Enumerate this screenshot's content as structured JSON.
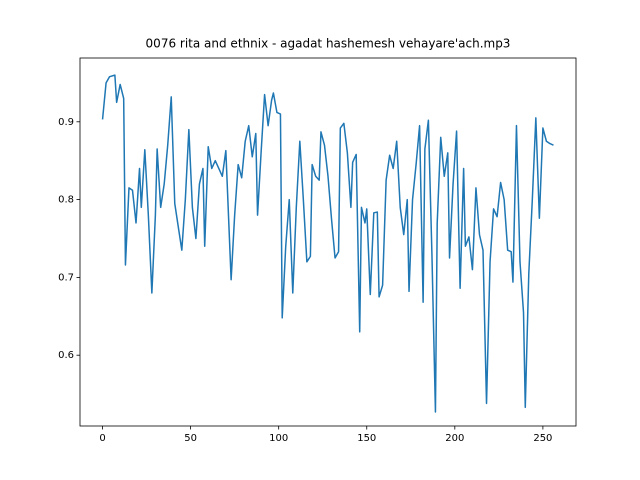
{
  "chart_data": {
    "type": "line",
    "title": "0076 rita and ethnix - agadat hashemesh vehayare'ach.mp3",
    "x": [
      0,
      2,
      4,
      7,
      8,
      10,
      12,
      13,
      15,
      17,
      19,
      21,
      22,
      24,
      26,
      28,
      30,
      31,
      33,
      35,
      37,
      39,
      41,
      43,
      45,
      47,
      49,
      51,
      53,
      55,
      57,
      58,
      60,
      62,
      64,
      66,
      68,
      70,
      73,
      75,
      77,
      79,
      81,
      83,
      85,
      87,
      88,
      90,
      92,
      94,
      96,
      97,
      99,
      101,
      102,
      104,
      106,
      108,
      110,
      112,
      114,
      116,
      118,
      119,
      121,
      123,
      124,
      126,
      128,
      130,
      132,
      134,
      135,
      137,
      139,
      141,
      142,
      144,
      146,
      147,
      149,
      150,
      152,
      154,
      156,
      157,
      159,
      161,
      163,
      165,
      167,
      169,
      171,
      173,
      174,
      176,
      178,
      180,
      182,
      183,
      185,
      187,
      189,
      190,
      192,
      194,
      196,
      197,
      199,
      201,
      203,
      205,
      206,
      208,
      210,
      212,
      214,
      216,
      218,
      220,
      222,
      224,
      226,
      228,
      230,
      232,
      233,
      235,
      237,
      239,
      240,
      242,
      244,
      246,
      248,
      250,
      252,
      254,
      256
    ],
    "values": [
      0.903,
      0.95,
      0.958,
      0.96,
      0.925,
      0.948,
      0.93,
      0.716,
      0.815,
      0.812,
      0.77,
      0.84,
      0.79,
      0.864,
      0.78,
      0.68,
      0.78,
      0.865,
      0.79,
      0.82,
      0.87,
      0.932,
      0.795,
      0.765,
      0.735,
      0.8,
      0.89,
      0.79,
      0.75,
      0.82,
      0.84,
      0.74,
      0.868,
      0.84,
      0.85,
      0.84,
      0.83,
      0.863,
      0.697,
      0.78,
      0.845,
      0.828,
      0.875,
      0.895,
      0.855,
      0.885,
      0.78,
      0.86,
      0.935,
      0.895,
      0.928,
      0.937,
      0.912,
      0.91,
      0.648,
      0.74,
      0.8,
      0.68,
      0.79,
      0.875,
      0.8,
      0.72,
      0.727,
      0.845,
      0.83,
      0.825,
      0.887,
      0.87,
      0.83,
      0.775,
      0.725,
      0.733,
      0.892,
      0.898,
      0.86,
      0.79,
      0.848,
      0.858,
      0.63,
      0.79,
      0.77,
      0.788,
      0.678,
      0.783,
      0.784,
      0.675,
      0.69,
      0.825,
      0.857,
      0.84,
      0.875,
      0.79,
      0.755,
      0.8,
      0.682,
      0.8,
      0.845,
      0.895,
      0.668,
      0.865,
      0.902,
      0.73,
      0.527,
      0.77,
      0.88,
      0.83,
      0.86,
      0.725,
      0.82,
      0.888,
      0.686,
      0.84,
      0.74,
      0.752,
      0.71,
      0.815,
      0.755,
      0.735,
      0.538,
      0.72,
      0.788,
      0.778,
      0.822,
      0.8,
      0.735,
      0.733,
      0.694,
      0.895,
      0.72,
      0.655,
      0.533,
      0.705,
      0.8,
      0.905,
      0.776,
      0.892,
      0.875,
      0.872,
      0.87
    ],
    "color": "#1f77b4",
    "xlim": [
      -12.8,
      268.8
    ],
    "ylim": [
      0.509,
      0.982
    ],
    "xticks": [
      0,
      50,
      100,
      150,
      200,
      250
    ],
    "yticks": [
      0.6,
      0.7,
      0.8,
      0.9
    ]
  }
}
